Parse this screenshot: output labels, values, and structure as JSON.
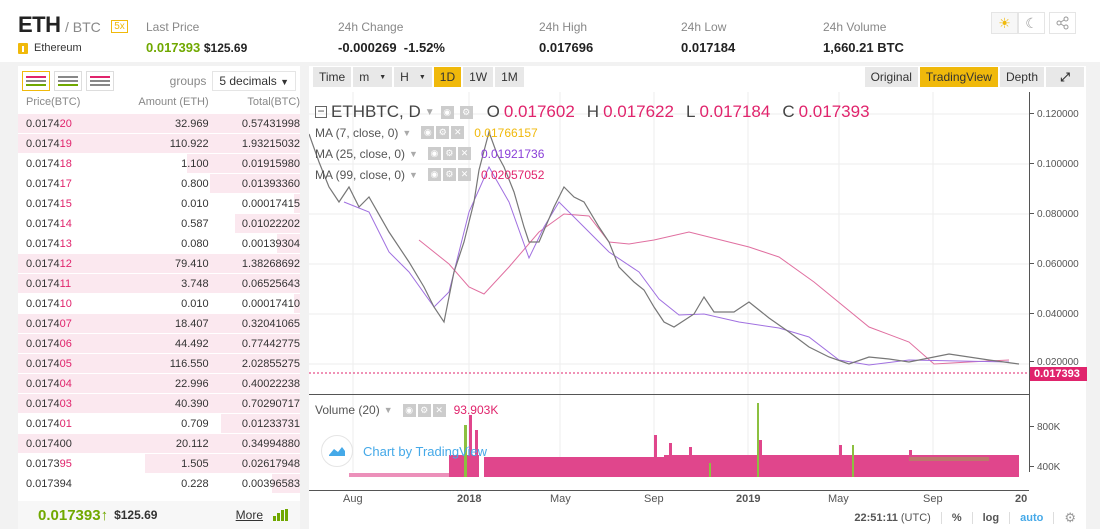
{
  "header": {
    "pair_base": "ETH",
    "pair_quote": "/ BTC",
    "leverage_badge": "5x",
    "coin_name": "Ethereum",
    "stats": [
      {
        "label": "Last Price",
        "value": "0.017393",
        "value_usd": "$125.69"
      },
      {
        "label": "24h Change",
        "value": "-0.000269",
        "value_pct": "-1.52%"
      },
      {
        "label": "24h High",
        "value": "0.017696"
      },
      {
        "label": "24h Low",
        "value": "0.017184"
      },
      {
        "label": "24h Volume",
        "value": "1,660.21 BTC"
      }
    ],
    "theme_icons": [
      "sun-icon",
      "moon-icon",
      "share-icon"
    ]
  },
  "orderbook": {
    "groups_label": "groups",
    "groups_value": "5 decimals",
    "columns": [
      "Price(BTC)",
      "Amount (ETH)",
      "Total(BTC)"
    ],
    "rows": [
      {
        "price_prefix": "0.0174",
        "price_suffix": "20",
        "amount": "32.969",
        "total": "0.57431998",
        "depth": 100
      },
      {
        "price_prefix": "0.0174",
        "price_suffix": "19",
        "amount": "110.922",
        "total": "1.93215032",
        "depth": 100
      },
      {
        "price_prefix": "0.0174",
        "price_suffix": "18",
        "amount": "1.100",
        "total": "0.01915980",
        "depth": 40
      },
      {
        "price_prefix": "0.0174",
        "price_suffix": "17",
        "amount": "0.800",
        "total": "0.01393360",
        "depth": 32
      },
      {
        "price_prefix": "0.0174",
        "price_suffix": "15",
        "amount": "0.010",
        "total": "0.00017415",
        "depth": 2
      },
      {
        "price_prefix": "0.0174",
        "price_suffix": "14",
        "amount": "0.587",
        "total": "0.01022202",
        "depth": 23
      },
      {
        "price_prefix": "0.0174",
        "price_suffix": "13",
        "amount": "0.080",
        "total": "0.00139304",
        "depth": 8
      },
      {
        "price_prefix": "0.0174",
        "price_suffix": "12",
        "amount": "79.410",
        "total": "1.38268692",
        "depth": 100
      },
      {
        "price_prefix": "0.0174",
        "price_suffix": "11",
        "amount": "3.748",
        "total": "0.06525643",
        "depth": 100
      },
      {
        "price_prefix": "0.0174",
        "price_suffix": "10",
        "amount": "0.010",
        "total": "0.00017410",
        "depth": 2
      },
      {
        "price_prefix": "0.0174",
        "price_suffix": "07",
        "amount": "18.407",
        "total": "0.32041065",
        "depth": 100
      },
      {
        "price_prefix": "0.0174",
        "price_suffix": "06",
        "amount": "44.492",
        "total": "0.77442775",
        "depth": 100
      },
      {
        "price_prefix": "0.0174",
        "price_suffix": "05",
        "amount": "116.550",
        "total": "2.02855275",
        "depth": 100
      },
      {
        "price_prefix": "0.0174",
        "price_suffix": "04",
        "amount": "22.996",
        "total": "0.40022238",
        "depth": 100
      },
      {
        "price_prefix": "0.0174",
        "price_suffix": "03",
        "amount": "40.390",
        "total": "0.70290717",
        "depth": 100
      },
      {
        "price_prefix": "0.0174",
        "price_suffix": "01",
        "amount": "0.709",
        "total": "0.01233731",
        "depth": 28
      },
      {
        "price_prefix": "0.017400",
        "price_suffix": "",
        "amount": "20.112",
        "total": "0.34994880",
        "depth": 100,
        "strong": true
      },
      {
        "price_prefix": "0.0173",
        "price_suffix": "95",
        "amount": "1.505",
        "total": "0.02617948",
        "depth": 55
      },
      {
        "price_prefix": "0.017394",
        "price_suffix": "",
        "amount": "0.228",
        "total": "0.00396583",
        "depth": 10,
        "strong": true
      }
    ],
    "footer": {
      "last_price": "0.017393",
      "arrow": "↑",
      "usd": "$125.69",
      "more_label": "More"
    }
  },
  "chart": {
    "toolbar": {
      "time_label": "Time",
      "intervals": [
        {
          "label": "m",
          "dropdown": true
        },
        {
          "label": "H",
          "dropdown": true
        },
        {
          "label": "1D",
          "active": true
        },
        {
          "label": "1W"
        },
        {
          "label": "1M"
        }
      ],
      "views": [
        {
          "label": "Original"
        },
        {
          "label": "TradingView",
          "active": true
        },
        {
          "label": "Depth"
        }
      ]
    },
    "legend": {
      "symbol": "ETHBTC, D",
      "o_label": "O",
      "o": "0.017602",
      "h_label": "H",
      "h": "0.017622",
      "l_label": "L",
      "l": "0.017184",
      "c_label": "C",
      "c": "0.017393",
      "ma": [
        {
          "label": "MA (7, close, 0)",
          "value": "0.01766157",
          "color": "#f0b90b"
        },
        {
          "label": "MA (25, close, 0)",
          "value": "0.01921736",
          "color": "#8a3fd8"
        },
        {
          "label": "MA (99, close, 0)",
          "value": "0.02057052",
          "color": "#e0246c"
        }
      ],
      "volume_label": "Volume (20)",
      "volume_value": "93.903K"
    },
    "price_axis": [
      "0.120000",
      "0.100000",
      "0.080000",
      "0.060000",
      "0.040000",
      "0.020000"
    ],
    "current_price_tag": "0.017393",
    "volume_axis": [
      "800K",
      "400K",
      "0"
    ],
    "time_axis": [
      "Aug",
      "2018",
      "May",
      "Sep",
      "2019",
      "May",
      "Sep",
      "20"
    ],
    "watermark": "Chart by TradingView",
    "status": {
      "time": "22:51:11",
      "tz": "(UTC)",
      "pct": "%",
      "log": "log",
      "auto": "auto"
    }
  },
  "colors": {
    "accent": "#f0b90b",
    "up": "#70a800",
    "down": "#e0246c",
    "ma7": "#f0b90b",
    "ma25": "#8a3fd8",
    "ma99": "#e0246c",
    "tradingview_blue": "#45a9e8"
  },
  "chart_data": {
    "type": "line",
    "title": "ETHBTC, D",
    "x": [
      "Aug 2017",
      "Oct 2017",
      "Dec 2017",
      "Jan 2018",
      "Mar 2018",
      "May 2018",
      "Jul 2018",
      "Sep 2018",
      "Nov 2018",
      "Jan 2019",
      "Mar 2019",
      "May 2019",
      "Jul 2019",
      "Sep 2019",
      "Nov 2019",
      "Dec 2019"
    ],
    "series": [
      {
        "name": "ETHBTC close",
        "values": [
          0.085,
          0.075,
          0.045,
          0.1,
          0.06,
          0.08,
          0.065,
          0.035,
          0.033,
          0.038,
          0.034,
          0.03,
          0.025,
          0.018,
          0.021,
          0.0174
        ]
      },
      {
        "name": "MA (99, close, 0)",
        "values": [
          null,
          0.075,
          0.06,
          0.05,
          0.075,
          0.07,
          0.078,
          0.055,
          0.04,
          0.035,
          0.034,
          0.033,
          0.028,
          0.023,
          0.021,
          0.0206
        ]
      }
    ],
    "ylabel": "BTC",
    "ylim": [
      0.01,
      0.125
    ],
    "yticks": [
      0.02,
      0.04,
      0.06,
      0.08,
      0.1,
      0.12
    ],
    "volume": {
      "ylim": [
        0,
        850000
      ],
      "yticks": [
        "0",
        "400K",
        "800K"
      ],
      "last": "93.903K"
    }
  }
}
